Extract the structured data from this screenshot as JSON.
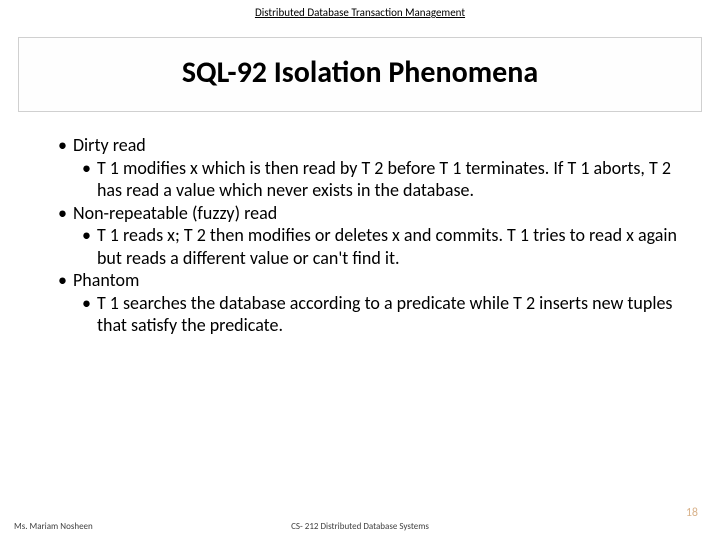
{
  "header": "Distributed Database Transaction Management",
  "title": "SQL-92 Isolation Phenomena",
  "bullets": {
    "l0a": "Dirty read",
    "l1a": "T 1 modifies x which is then read by T 2 before T 1 terminates.  If T 1 aborts, T 2 has read a value which never exists in the database.",
    "l0b": "Non-repeatable (fuzzy) read",
    "l1b": "T 1 reads x; T 2 then modifies or deletes x and commits. T 1 tries to read x again but reads a different value or can't find it.",
    "l0c": "Phantom",
    "l1c": "T 1 searches the database according to a predicate while T 2  inserts new tuples that satisfy the predicate."
  },
  "footer": {
    "author": "Ms. Mariam Nosheen",
    "course": "CS- 212 Distributed Database Systems",
    "page": "18"
  }
}
